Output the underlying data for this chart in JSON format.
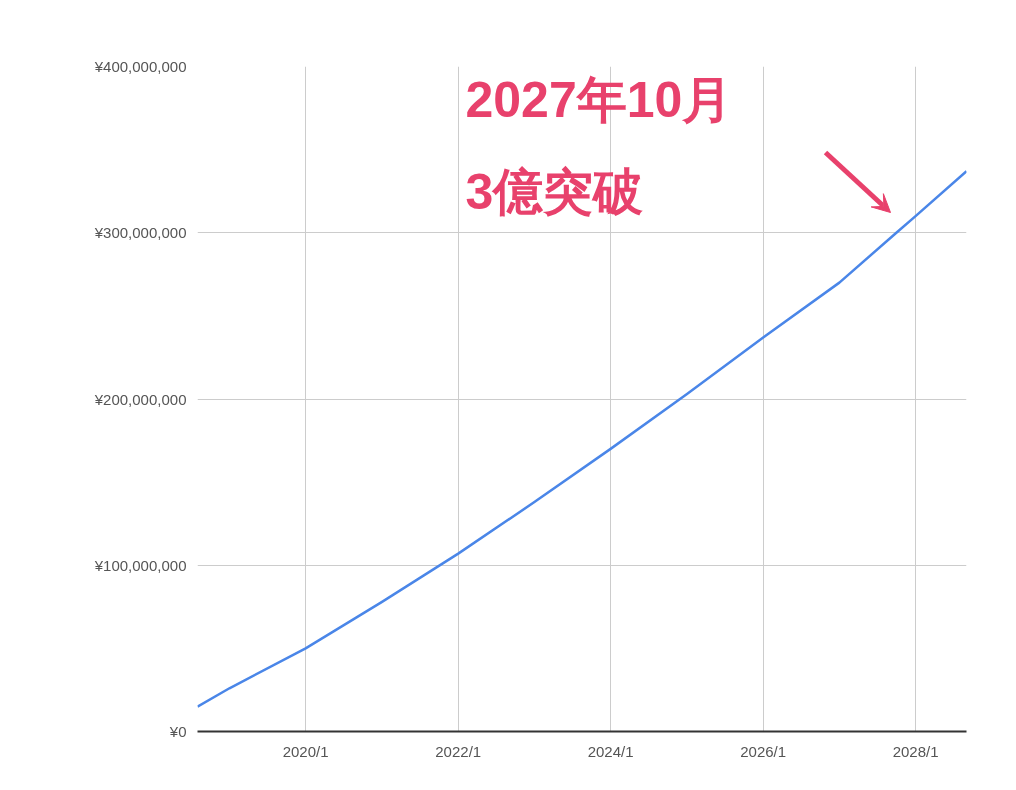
{
  "chart_data": {
    "type": "line",
    "x": [
      "2018-08",
      "2019-01",
      "2020-01",
      "2021-01",
      "2022-01",
      "2023-01",
      "2024-01",
      "2025-01",
      "2026-01",
      "2027-01",
      "2027-10",
      "2028-01",
      "2028-09"
    ],
    "series": [
      {
        "color": "#4a86e8",
        "values": [
          15000000,
          26000000,
          50000000,
          78000000,
          107000000,
          138000000,
          170000000,
          203000000,
          237000000,
          270000000,
          300000000,
          310000000,
          337000000
        ]
      }
    ],
    "xlim": [
      "2018-08",
      "2028-09"
    ],
    "xticks": [
      {
        "value": "2020-01",
        "label": "2020/1"
      },
      {
        "value": "2022-01",
        "label": "2022/1"
      },
      {
        "value": "2024-01",
        "label": "2024/1"
      },
      {
        "value": "2026-01",
        "label": "2026/1"
      },
      {
        "value": "2028-01",
        "label": "2028/1"
      }
    ],
    "ylim": [
      0,
      400000000
    ],
    "yticks": [
      {
        "value": 0,
        "label": "¥0"
      },
      {
        "value": 100000000,
        "label": "¥100,000,000"
      },
      {
        "value": 200000000,
        "label": "¥200,000,000"
      },
      {
        "value": 300000000,
        "label": "¥300,000,000"
      },
      {
        "value": 400000000,
        "label": "¥400,000,000"
      }
    ],
    "grid": true,
    "marker": "none",
    "line_style": "solid",
    "annotations": [
      "2027年10月\n3億突破"
    ]
  }
}
